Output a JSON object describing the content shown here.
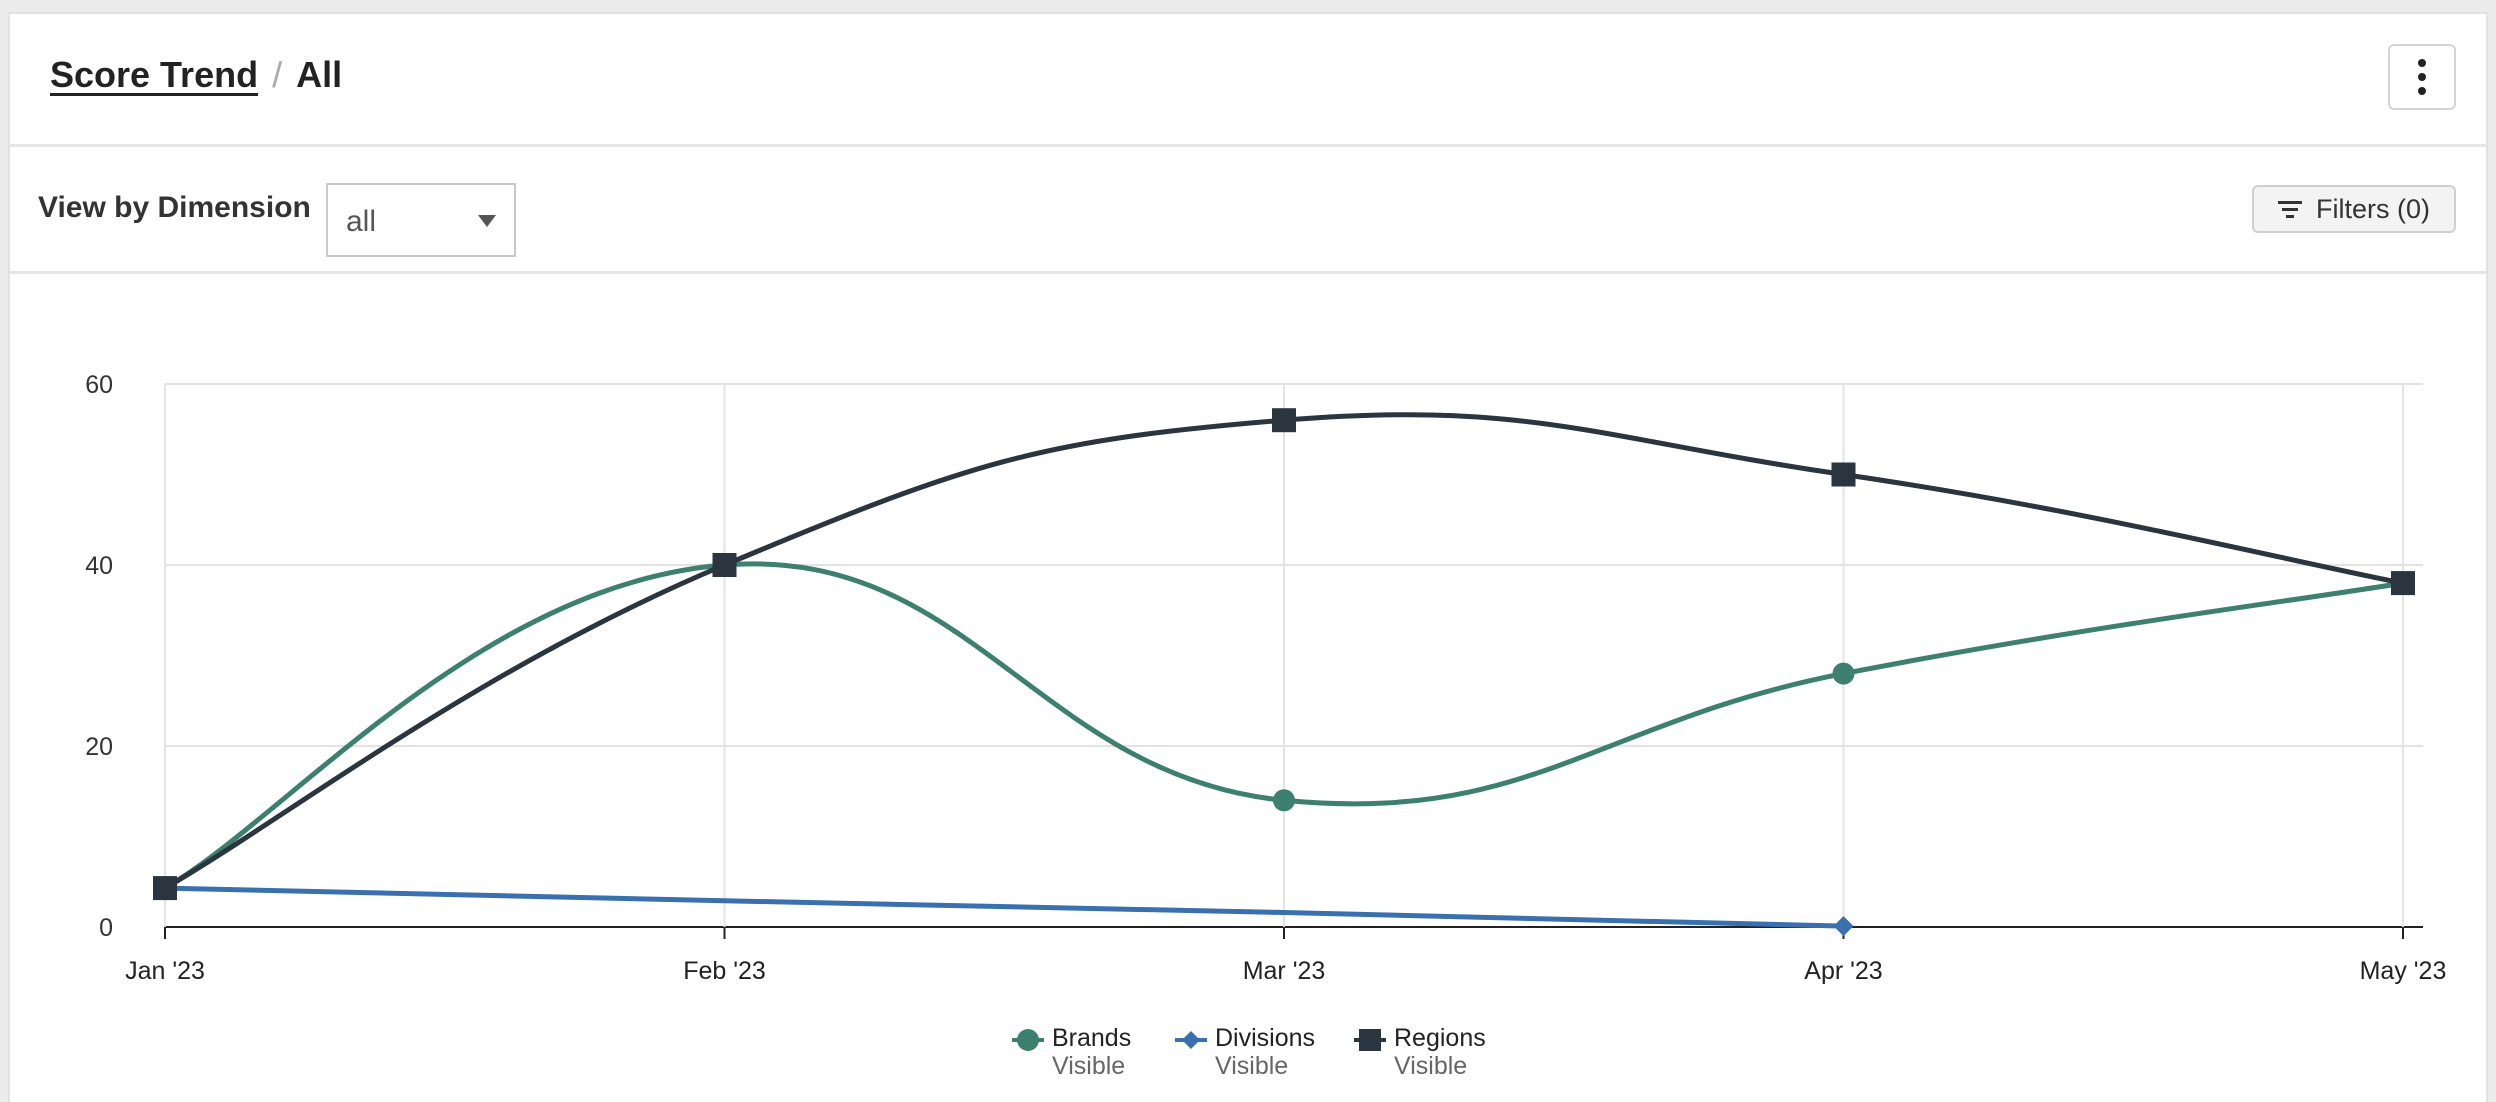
{
  "header": {
    "title_link": "Score Trend",
    "separator": "/",
    "title_current": "All"
  },
  "toolbar": {
    "dimension_label": "View by Dimension",
    "dimension_value": "all",
    "filters_label": "Filters (0)"
  },
  "icons": {
    "more": "more-vertical-icon",
    "filter": "filter-icon",
    "caret": "caret-down-icon"
  },
  "chart_data": {
    "type": "line",
    "categories": [
      "Jan '23",
      "Feb '23",
      "Mar '23",
      "Apr '23",
      "May '23"
    ],
    "ylim": [
      0,
      60
    ],
    "yticks": [
      0,
      20,
      40,
      60
    ],
    "grid": true,
    "legend_position": "bottom-center",
    "series": [
      {
        "name": "Brands",
        "status": "Visible",
        "color": "#3d8070",
        "marker": "circle",
        "values": [
          4.3,
          40,
          14,
          28,
          38
        ]
      },
      {
        "name": "Divisions",
        "status": "Visible",
        "color": "#3a70b0",
        "marker": "diamond",
        "values": [
          4.3,
          2.9,
          1.6,
          0.1,
          null
        ]
      },
      {
        "name": "Regions",
        "status": "Visible",
        "color": "#2a3540",
        "marker": "square",
        "values": [
          4.3,
          40,
          56,
          50,
          38
        ]
      }
    ]
  }
}
